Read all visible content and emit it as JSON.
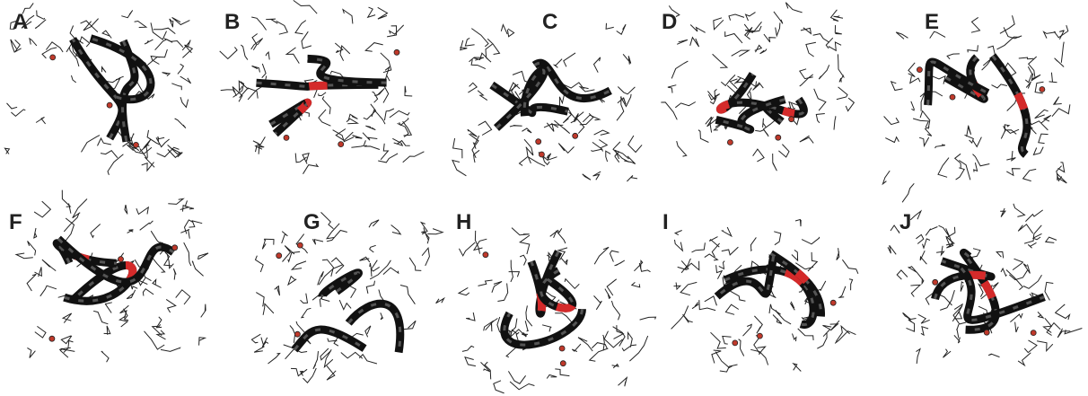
{
  "panels": [
    {
      "label": "A"
    },
    {
      "label": "B"
    },
    {
      "label": "C"
    },
    {
      "label": "D"
    },
    {
      "label": "E"
    },
    {
      "label": "F"
    },
    {
      "label": "G"
    },
    {
      "label": "H"
    },
    {
      "label": "I"
    },
    {
      "label": "J"
    }
  ]
}
